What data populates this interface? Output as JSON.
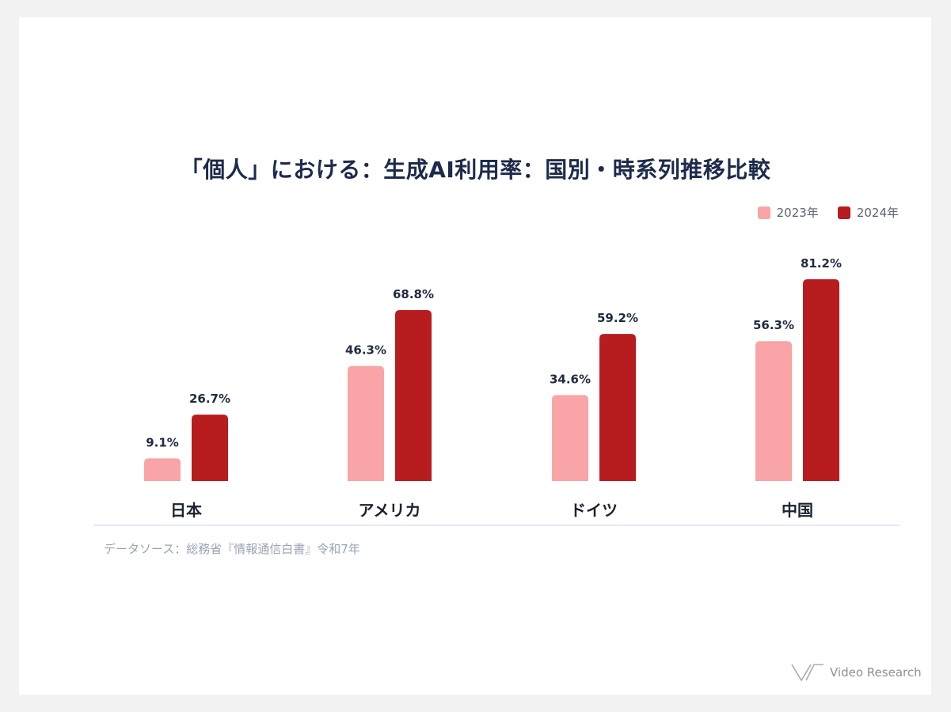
{
  "page": {
    "title": "「個人」における：生成AI利用率：国別・時系列推移比較",
    "source": "データソース：総務省『情報通信白書』令和7年",
    "logo_text": "Video Research"
  },
  "colors": {
    "series_2023": "#f9a4a6",
    "series_2024": "#b71c1f",
    "title": "#1c2a4c",
    "baseline": "#dde1f0"
  },
  "chart_data": {
    "type": "bar",
    "title": "「個人」における：生成AI利用率：国別・時系列推移比較",
    "categories": [
      "日本",
      "アメリカ",
      "ドイツ",
      "中国"
    ],
    "series": [
      {
        "name": "2023年",
        "values": [
          9.1,
          46.3,
          34.6,
          56.3
        ],
        "labels": [
          "9.1%",
          "46.3%",
          "34.6%",
          "56.3%"
        ]
      },
      {
        "name": "2024年",
        "values": [
          26.7,
          68.8,
          59.2,
          81.2
        ],
        "labels": [
          "26.7%",
          "68.8%",
          "59.2%",
          "81.2%"
        ]
      }
    ],
    "xlabel": "",
    "ylabel": "",
    "ylim": [
      0,
      100
    ],
    "grid": false,
    "legend": "top-right"
  }
}
